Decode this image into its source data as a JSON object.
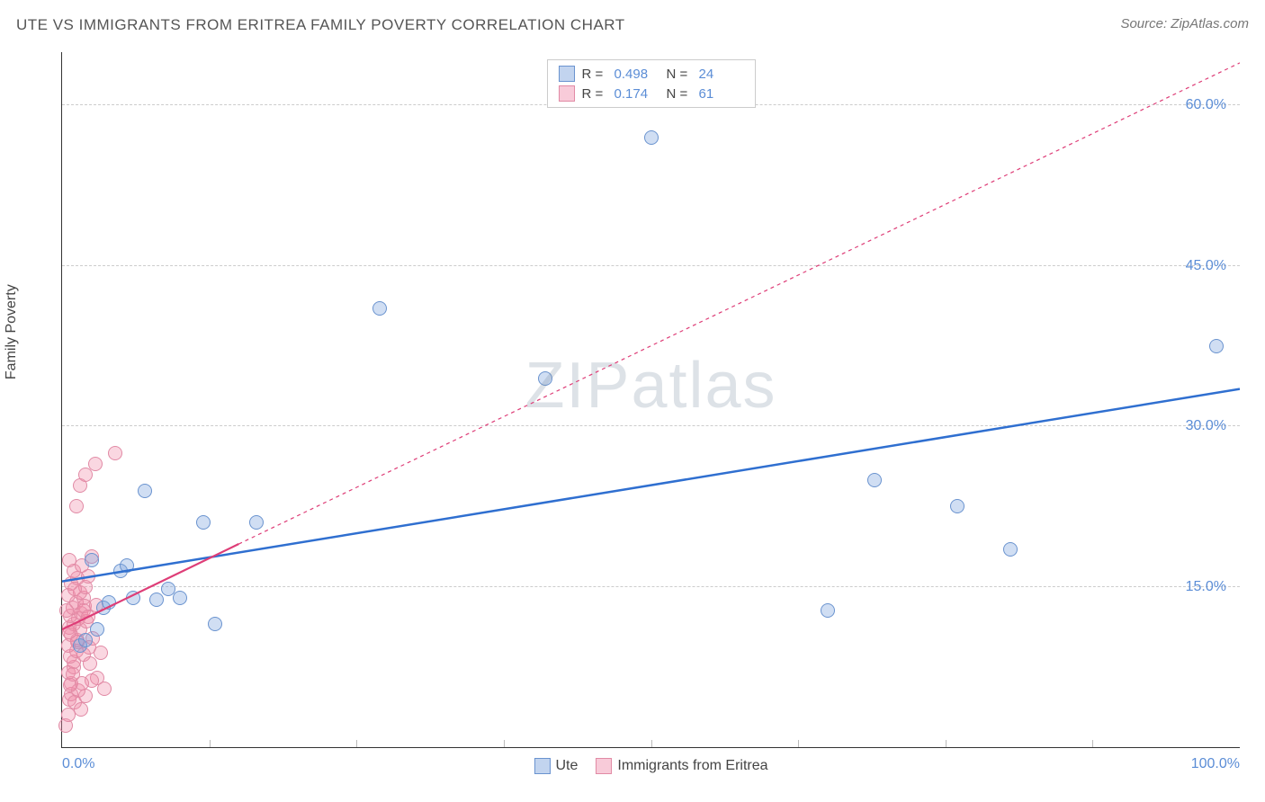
{
  "title": "UTE VS IMMIGRANTS FROM ERITREA FAMILY POVERTY CORRELATION CHART",
  "source": "Source: ZipAtlas.com",
  "y_axis_label": "Family Poverty",
  "watermark": "ZIPatlas",
  "chart": {
    "type": "scatter",
    "xlim": [
      0,
      100
    ],
    "ylim": [
      0,
      65
    ],
    "x_ticks": [
      0,
      50,
      100
    ],
    "x_tick_labels": [
      "0.0%",
      "",
      "100.0%"
    ],
    "y_ticks": [
      15,
      30,
      45,
      60
    ],
    "y_tick_labels": [
      "15.0%",
      "30.0%",
      "45.0%",
      "60.0%"
    ],
    "x_minor_ticks": [
      12.5,
      25,
      37.5,
      50,
      62.5,
      75,
      87.5
    ],
    "grid_color": "#cccccc",
    "background_color": "#ffffff",
    "marker_radius": 8,
    "marker_border_width": 1.2,
    "series": [
      {
        "name": "Ute",
        "fill_color": "rgba(120,160,220,0.35)",
        "stroke_color": "#6a93cf",
        "line_color": "#2f6fd0",
        "line_width": 2.5,
        "line_dash": "none",
        "R": "0.498",
        "N": "24",
        "regression": {
          "x1": 0,
          "y1": 15.5,
          "x2": 100,
          "y2": 33.5
        },
        "points": [
          [
            1.5,
            9.5
          ],
          [
            2.0,
            10.0
          ],
          [
            2.5,
            17.5
          ],
          [
            3.0,
            11.0
          ],
          [
            3.5,
            13.0
          ],
          [
            4.0,
            13.5
          ],
          [
            5.0,
            16.5
          ],
          [
            5.5,
            17.0
          ],
          [
            6.0,
            14.0
          ],
          [
            7.0,
            24.0
          ],
          [
            8.0,
            13.8
          ],
          [
            9.0,
            14.8
          ],
          [
            10.0,
            14.0
          ],
          [
            12.0,
            21.0
          ],
          [
            13.0,
            11.5
          ],
          [
            16.5,
            21.0
          ],
          [
            27.0,
            41.0
          ],
          [
            41.0,
            34.5
          ],
          [
            50.0,
            57.0
          ],
          [
            65.0,
            12.8
          ],
          [
            69.0,
            25.0
          ],
          [
            76.0,
            22.5
          ],
          [
            80.5,
            18.5
          ],
          [
            98.0,
            37.5
          ]
        ]
      },
      {
        "name": "Immigrants from Eritrea",
        "fill_color": "rgba(240,140,170,0.35)",
        "stroke_color": "#e18aa5",
        "line_color": "#de3d77",
        "line_width": 2.2,
        "line_dash": "4 4",
        "R": "0.174",
        "N": "61",
        "regression_solid": {
          "x1": 0,
          "y1": 11.0,
          "x2": 15,
          "y2": 19.0
        },
        "regression_dashed": {
          "x1": 15,
          "y1": 19.0,
          "x2": 100,
          "y2": 64.0
        },
        "points": [
          [
            0.3,
            2.0
          ],
          [
            0.5,
            3.0
          ],
          [
            0.6,
            4.5
          ],
          [
            0.8,
            5.0
          ],
          [
            0.8,
            6.0
          ],
          [
            0.5,
            7.0
          ],
          [
            1.0,
            7.5
          ],
          [
            1.0,
            8.0
          ],
          [
            0.7,
            8.5
          ],
          [
            1.2,
            9.0
          ],
          [
            0.5,
            9.5
          ],
          [
            1.3,
            10.0
          ],
          [
            0.8,
            10.5
          ],
          [
            1.5,
            11.0
          ],
          [
            0.6,
            11.2
          ],
          [
            1.0,
            11.5
          ],
          [
            1.4,
            12.0
          ],
          [
            0.7,
            12.3
          ],
          [
            1.6,
            12.5
          ],
          [
            0.9,
            13.0
          ],
          [
            1.2,
            13.5
          ],
          [
            1.8,
            14.0
          ],
          [
            0.5,
            14.2
          ],
          [
            1.5,
            14.5
          ],
          [
            2.0,
            15.0
          ],
          [
            0.8,
            15.3
          ],
          [
            1.3,
            15.8
          ],
          [
            2.2,
            16.0
          ],
          [
            1.0,
            16.5
          ],
          [
            1.7,
            17.0
          ],
          [
            0.6,
            17.5
          ],
          [
            2.5,
            17.8
          ],
          [
            1.2,
            22.5
          ],
          [
            1.5,
            24.5
          ],
          [
            2.0,
            25.5
          ],
          [
            2.8,
            26.5
          ],
          [
            4.5,
            27.5
          ],
          [
            1.8,
            8.7
          ],
          [
            2.3,
            9.3
          ],
          [
            2.6,
            10.2
          ],
          [
            3.0,
            6.5
          ],
          [
            3.3,
            8.8
          ],
          [
            3.6,
            5.5
          ],
          [
            2.0,
            4.8
          ],
          [
            2.5,
            6.2
          ],
          [
            1.9,
            13.2
          ],
          [
            2.1,
            11.8
          ],
          [
            0.4,
            12.8
          ],
          [
            0.9,
            6.8
          ],
          [
            1.4,
            5.3
          ],
          [
            1.1,
            4.2
          ],
          [
            1.6,
            3.5
          ],
          [
            0.7,
            5.8
          ],
          [
            2.4,
            7.8
          ],
          [
            1.3,
            9.8
          ],
          [
            0.6,
            10.8
          ],
          [
            1.8,
            12.8
          ],
          [
            1.1,
            14.8
          ],
          [
            2.9,
            13.3
          ],
          [
            1.7,
            6.0
          ],
          [
            2.2,
            12.2
          ]
        ]
      }
    ]
  },
  "legend_top": {
    "rows": [
      {
        "swatch_fill": "rgba(120,160,220,0.45)",
        "swatch_stroke": "#6a93cf",
        "R_label": "R =",
        "R_val": "0.498",
        "N_label": "N =",
        "N_val": "24"
      },
      {
        "swatch_fill": "rgba(240,140,170,0.45)",
        "swatch_stroke": "#e18aa5",
        "R_label": "R =",
        "R_val": "0.174",
        "N_label": "N =",
        "N_val": "61"
      }
    ]
  },
  "legend_bottom": {
    "items": [
      {
        "swatch_fill": "rgba(120,160,220,0.45)",
        "swatch_stroke": "#6a93cf",
        "label": "Ute"
      },
      {
        "swatch_fill": "rgba(240,140,170,0.45)",
        "swatch_stroke": "#e18aa5",
        "label": "Immigrants from Eritrea"
      }
    ]
  }
}
